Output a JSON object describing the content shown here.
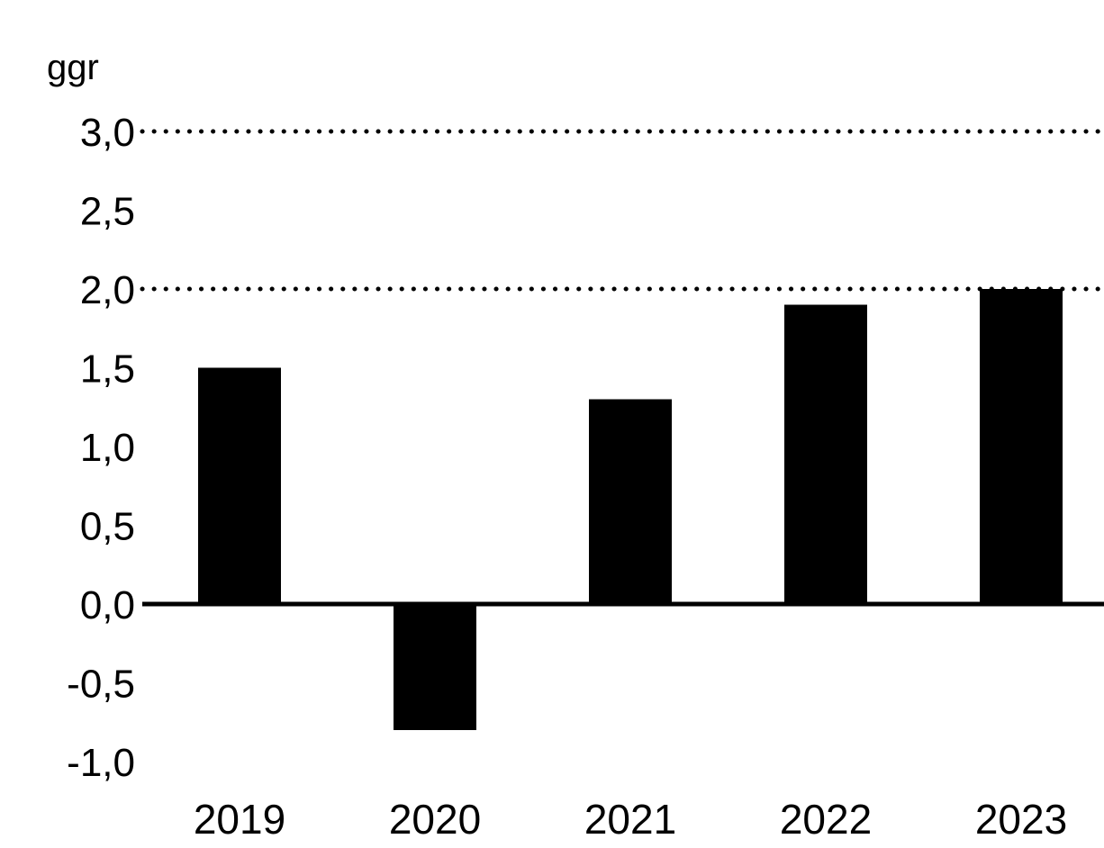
{
  "chart_data": {
    "type": "bar",
    "unit_label": "ggr",
    "categories": [
      "2019",
      "2020",
      "2021",
      "2022",
      "2023"
    ],
    "values": [
      1.5,
      -0.8,
      1.3,
      1.9,
      2.0
    ],
    "ylim": [
      -1.0,
      3.0
    ],
    "y_ticks": [
      "3,0",
      "2,5",
      "2,0",
      "1,5",
      "1,0",
      "0,5",
      "0,0",
      "-0,5",
      "-1,0"
    ],
    "y_tick_values": [
      3.0,
      2.5,
      2.0,
      1.5,
      1.0,
      0.5,
      0.0,
      -0.5,
      -1.0
    ],
    "reference_lines": [
      2.0,
      3.0
    ],
    "reference_line_style": "dotted",
    "grid": false,
    "legend": "none",
    "colors": {
      "bar": "#000000",
      "axis": "#000000",
      "reference": "#000000"
    }
  }
}
